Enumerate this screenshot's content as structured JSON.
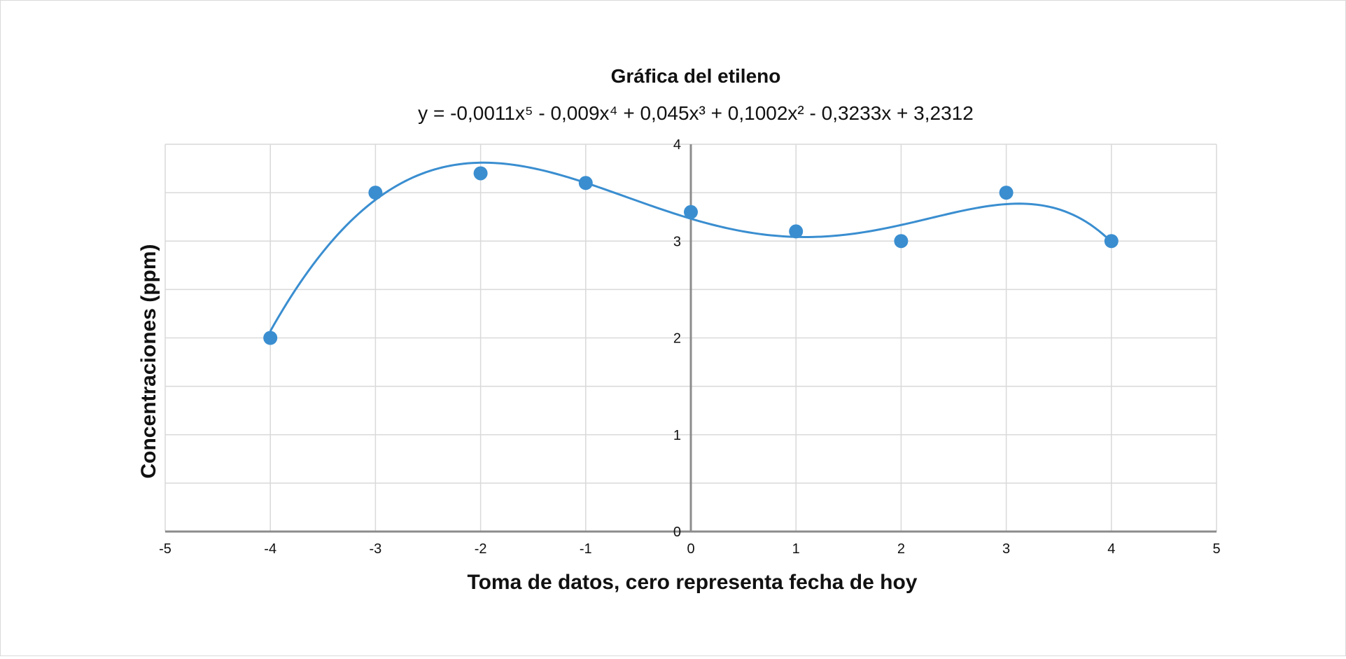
{
  "chart_data": {
    "type": "scatter",
    "title": "Gráfica del etileno",
    "trendline_equation": "y = -0,0011x⁵ - 0,009x⁴ + 0,045x³ + 0,1002x² - 0,3233x + 3,2312",
    "trendline": {
      "type": "polynomial",
      "order": 5,
      "coefficients": [
        -0.0011,
        -0.009,
        0.045,
        0.1002,
        -0.3233,
        3.2312
      ]
    },
    "xlabel": "Toma de datos, cero representa fecha de hoy",
    "ylabel": "Concentraciones (ppm)",
    "xlim": [
      -5,
      5
    ],
    "ylim": [
      0,
      4
    ],
    "x_ticks": [
      "-5",
      "-4",
      "-3",
      "-2",
      "-1",
      "0",
      "1",
      "2",
      "3",
      "4",
      "5"
    ],
    "y_ticks": [
      "0",
      "1",
      "2",
      "3",
      "4"
    ],
    "grid": true,
    "series": [
      {
        "x": [
          -4,
          -3,
          -2,
          -1,
          0,
          1,
          2,
          3,
          4
        ],
        "y": [
          2.0,
          3.5,
          3.7,
          3.6,
          3.3,
          3.1,
          3.0,
          3.5,
          3.0
        ],
        "color": "#3a8ed0"
      }
    ]
  }
}
